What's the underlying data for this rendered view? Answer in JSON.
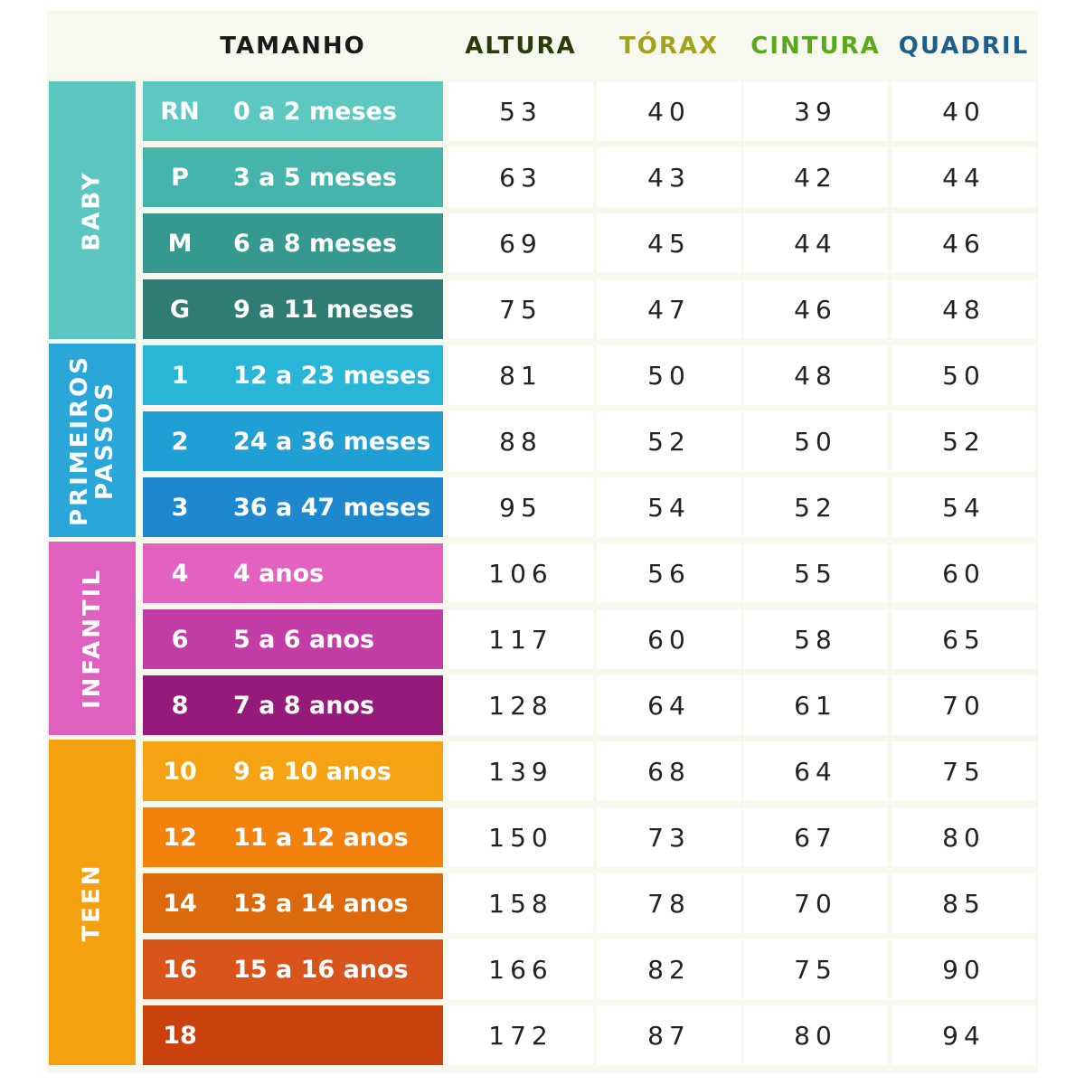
{
  "headers": {
    "size": {
      "label": "TAMANHO",
      "color": "#1a1a1a"
    },
    "height": {
      "label": "ALTURA",
      "color": "#2d3a10"
    },
    "chest": {
      "label": "TÓRAX",
      "color": "#a3a21e"
    },
    "waist": {
      "label": "CINTURA",
      "color": "#5aa81c"
    },
    "hip": {
      "label": "QUADRIL",
      "color": "#1e5f8a"
    }
  },
  "groups": [
    {
      "label": "BABY",
      "color": "#5cc6c0",
      "start": 0,
      "count": 4
    },
    {
      "label": "PRIMEIROS PASSOS",
      "color": "#2aa7d8",
      "start": 4,
      "count": 3
    },
    {
      "label": "INFANTIL",
      "color": "#e060c0",
      "start": 7,
      "count": 3
    },
    {
      "label": "TEEN",
      "color": "#f5a10f",
      "start": 10,
      "count": 5
    }
  ],
  "rows": [
    {
      "size": "RN",
      "age": "0 a 2 meses",
      "color": "#5dc8bf",
      "altura": "53",
      "torax": "40",
      "cintura": "39",
      "quadril": "40"
    },
    {
      "size": "P",
      "age": "3 a 5 meses",
      "color": "#45b5ab",
      "altura": "63",
      "torax": "43",
      "cintura": "42",
      "quadril": "44"
    },
    {
      "size": "M",
      "age": "6 a 8 meses",
      "color": "#36998f",
      "altura": "69",
      "torax": "45",
      "cintura": "44",
      "quadril": "46"
    },
    {
      "size": "G",
      "age": "9 a 11 meses",
      "color": "#2e7c74",
      "altura": "75",
      "torax": "47",
      "cintura": "46",
      "quadril": "48"
    },
    {
      "size": "1",
      "age": "12 a 23 meses",
      "color": "#27b5d8",
      "altura": "81",
      "torax": "50",
      "cintura": "48",
      "quadril": "50"
    },
    {
      "size": "2",
      "age": "24 a 36 meses",
      "color": "#1f9fd3",
      "altura": "88",
      "torax": "52",
      "cintura": "50",
      "quadril": "52"
    },
    {
      "size": "3",
      "age": "36 a 47 meses",
      "color": "#1e88cf",
      "altura": "95",
      "torax": "54",
      "cintura": "52",
      "quadril": "54"
    },
    {
      "size": "4",
      "age": "4 anos",
      "color": "#e362c0",
      "altura": "106",
      "torax": "56",
      "cintura": "55",
      "quadril": "60"
    },
    {
      "size": "6",
      "age": "5 a 6 anos",
      "color": "#c23ea6",
      "altura": "117",
      "torax": "60",
      "cintura": "58",
      "quadril": "65"
    },
    {
      "size": "8",
      "age": "7 a 8 anos",
      "color": "#961a7a",
      "altura": "128",
      "torax": "64",
      "cintura": "61",
      "quadril": "70"
    },
    {
      "size": "10",
      "age": "9 a 10 anos",
      "color": "#f5a313",
      "altura": "139",
      "torax": "68",
      "cintura": "64",
      "quadril": "75"
    },
    {
      "size": "12",
      "age": "11 a 12 anos",
      "color": "#f3820d",
      "altura": "150",
      "torax": "73",
      "cintura": "67",
      "quadril": "80"
    },
    {
      "size": "14",
      "age": "13 a 14 anos",
      "color": "#dc6a0c",
      "altura": "158",
      "torax": "78",
      "cintura": "70",
      "quadril": "85"
    },
    {
      "size": "16",
      "age": "15 a 16 anos",
      "color": "#d9541b",
      "altura": "166",
      "torax": "82",
      "cintura": "75",
      "quadril": "90"
    },
    {
      "size": "18",
      "age": "",
      "color": "#c9420e",
      "altura": "172",
      "torax": "87",
      "cintura": "80",
      "quadril": "94"
    }
  ]
}
